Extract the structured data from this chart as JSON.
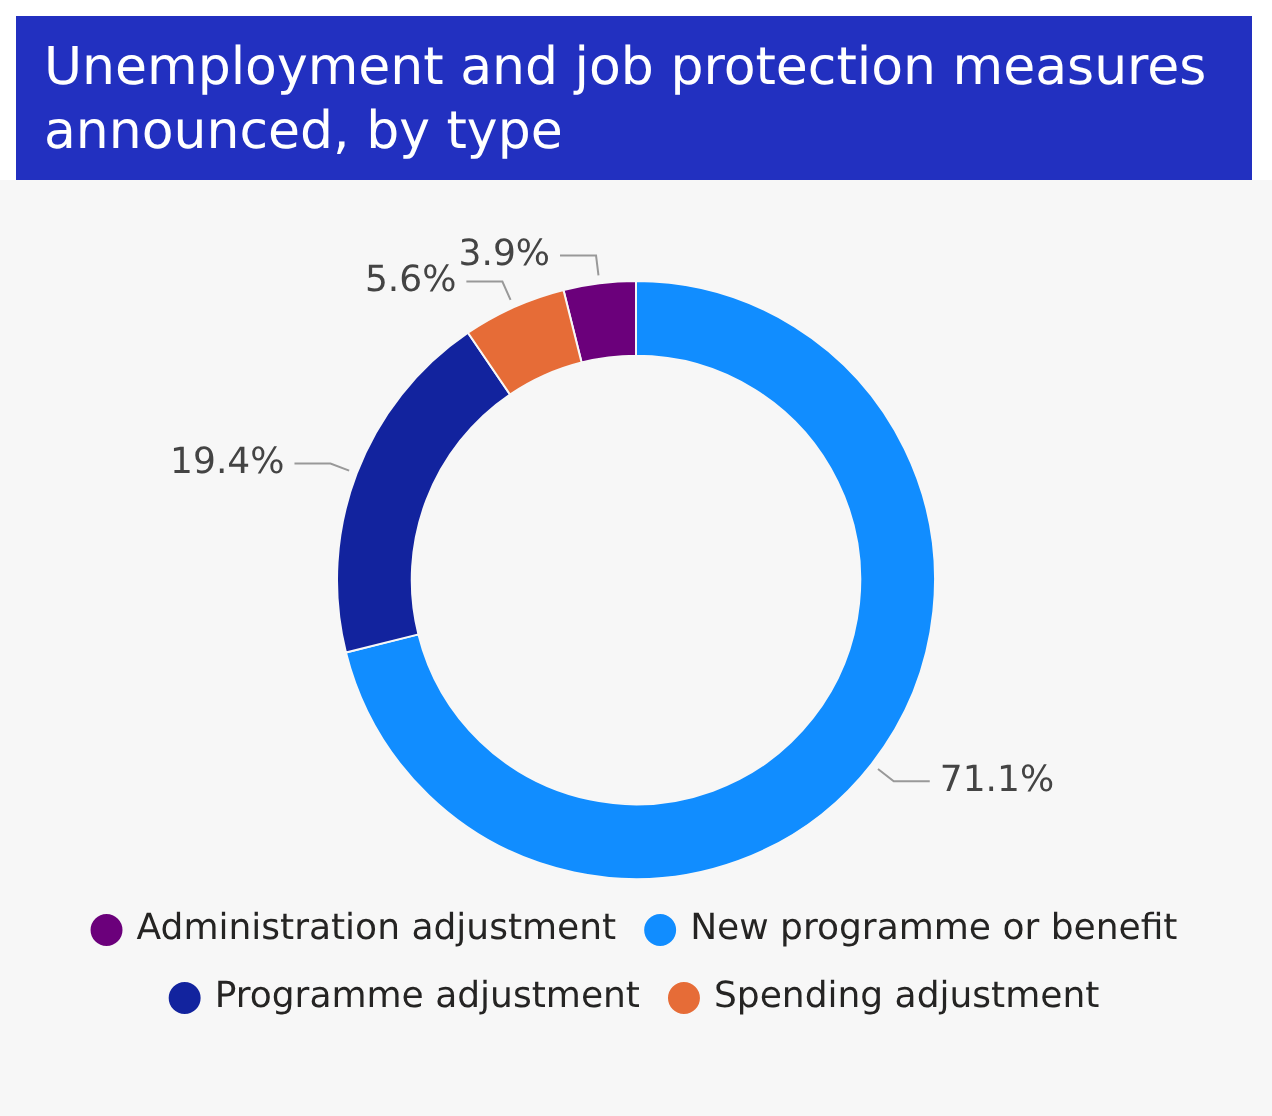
{
  "chart_data": {
    "type": "donut",
    "title": "Unemployment and job protection measures announced, by type",
    "categories": [
      "Administration adjustment",
      "New programme or benefit",
      "Programme adjustment",
      "Spending adjustment"
    ],
    "values": [
      3.9,
      71.1,
      19.4,
      5.6
    ],
    "value_labels": [
      "3.9%",
      "71.1%",
      "19.4%",
      "5.6%"
    ],
    "colors": [
      "#6b007b",
      "#118dff",
      "#12239e",
      "#e66c37"
    ],
    "legend": "bottom"
  }
}
